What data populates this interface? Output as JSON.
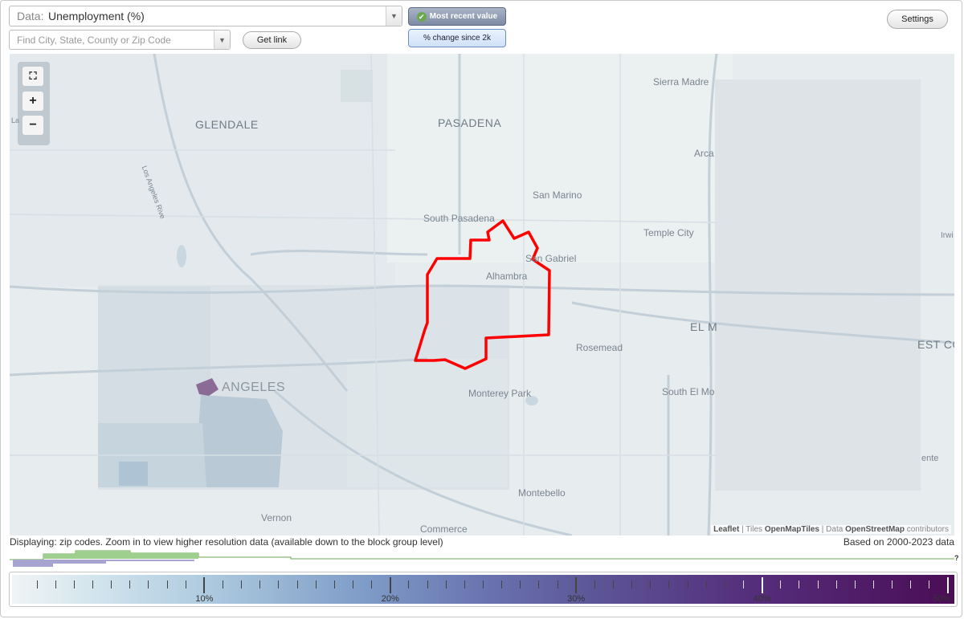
{
  "controls": {
    "data_prefix": "Data:",
    "data_value": "Unemployment (%)",
    "search_placeholder": "Find City, State, County or Zip Code",
    "get_link": "Get link",
    "toggle_recent": "Most recent value",
    "toggle_change": "% change since 2k",
    "settings": "Settings"
  },
  "map": {
    "places": [
      {
        "id": "glendale",
        "label": "GLENDALE",
        "size": "big"
      },
      {
        "id": "pasadena",
        "label": "PASADENA",
        "size": "big"
      },
      {
        "id": "sierra-madre",
        "label": "Sierra Madre",
        "size": "normal"
      },
      {
        "id": "arcadia",
        "label": "Arca",
        "size": "normal"
      },
      {
        "id": "san-marino",
        "label": "San Marino",
        "size": "normal"
      },
      {
        "id": "south-pasadena",
        "label": "South Pasadena",
        "size": "normal"
      },
      {
        "id": "temple-city",
        "label": "Temple City",
        "size": "normal"
      },
      {
        "id": "san-gabriel",
        "label": "San Gabriel",
        "size": "normal"
      },
      {
        "id": "alhambra",
        "label": "Alhambra",
        "size": "normal"
      },
      {
        "id": "el-monte",
        "label": "EL M",
        "size": "big"
      },
      {
        "id": "rosemead",
        "label": "Rosemead",
        "size": "normal"
      },
      {
        "id": "west-covina",
        "label": "EST CO",
        "size": "big"
      },
      {
        "id": "los-angeles",
        "label": "ANGELES",
        "size": "huge"
      },
      {
        "id": "monterey-park",
        "label": "Monterey Park",
        "size": "normal"
      },
      {
        "id": "south-el-monte",
        "label": "South El Mo",
        "size": "normal"
      },
      {
        "id": "montebello",
        "label": "Montebello",
        "size": "normal"
      },
      {
        "id": "vernon",
        "label": "Vernon",
        "size": "normal"
      },
      {
        "id": "commerce",
        "label": "Commerce",
        "size": "normal"
      },
      {
        "id": "irwindale",
        "label": "Irwi",
        "size": "normal"
      },
      {
        "id": "la-river",
        "label": "Los Angeles Rive",
        "size": "normal"
      },
      {
        "id": "la-edge",
        "label": "La",
        "size": "normal"
      },
      {
        "id": "ente",
        "label": "ente",
        "size": "normal"
      }
    ],
    "attribution": {
      "leaflet": "Leaflet",
      "sep1": " | Tiles ",
      "tiles": "OpenMapTiles",
      "sep2": " | Data ",
      "osm": "OpenStreetMap",
      "contrib": " contributors"
    },
    "boundary_color": "#ff0000"
  },
  "footer": {
    "display_note": "Displaying: zip codes. Zoom in to view higher resolution data (available down to the block group level)",
    "based_on": "Based on 2000-2023 data",
    "question": "?"
  },
  "legend": {
    "tick_labels": [
      "10%",
      "20%",
      "30%",
      "40%",
      "50%"
    ],
    "min": 0,
    "max": 50,
    "colors": [
      "#f0f4f5",
      "#b0cce0",
      "#6a74b0",
      "#552f7c",
      "#4b0d56"
    ]
  }
}
